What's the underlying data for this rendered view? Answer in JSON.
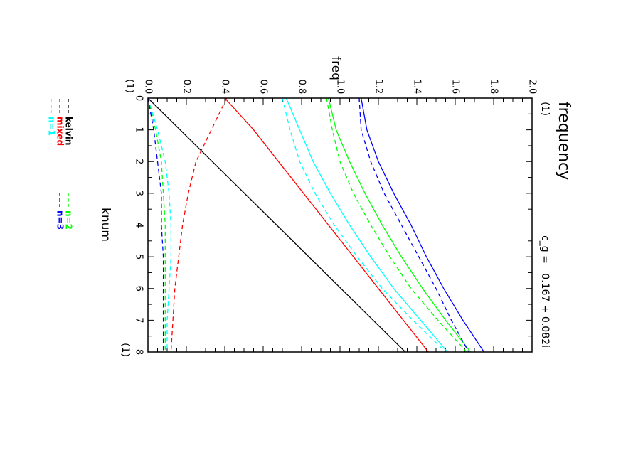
{
  "chart_data": {
    "type": "line",
    "orientation": "rotated-90-clockwise",
    "title": "frequency",
    "title_unit": "(1)",
    "subtitle": "c_g =   0.167 + 0.082i",
    "xlabel": "knum",
    "x_unit": "(1)",
    "ylabel": "freq",
    "y_unit": "(1)",
    "xlim": [
      0,
      8
    ],
    "ylim": [
      0,
      2
    ],
    "x_ticks": [
      "0",
      "1",
      "2",
      "3",
      "4",
      "5",
      "6",
      "7",
      "8"
    ],
    "y_ticks": [
      "0.0",
      "0.2",
      "0.4",
      "0.6",
      "0.8",
      "1.0",
      "1.2",
      "1.4",
      "1.6",
      "1.8",
      "2.0"
    ],
    "grid": false,
    "legend": [
      {
        "label": "kelvin",
        "color": "#000000"
      },
      {
        "label": "mixed",
        "color": "#ff0000"
      },
      {
        "label": "n=1",
        "color": "#00ffff"
      },
      {
        "label": "n=2",
        "color": "#00ff00"
      },
      {
        "label": "n=3",
        "color": "#0000ff"
      }
    ],
    "series": [
      {
        "name": "kelvin",
        "color": "#000000",
        "dash": "solid",
        "x": [
          0,
          8
        ],
        "y": [
          0,
          1.34
        ]
      },
      {
        "name": "mixed",
        "color": "#ff0000",
        "dash": "solid",
        "x": [
          0,
          1,
          2,
          3,
          4,
          5,
          6,
          7,
          8
        ],
        "y": [
          0.4,
          0.55,
          0.68,
          0.81,
          0.94,
          1.07,
          1.2,
          1.33,
          1.46
        ]
      },
      {
        "name": "mixed",
        "color": "#ff0000",
        "dash": "dashed",
        "x": [
          0,
          1,
          2,
          2.5,
          3,
          4,
          5,
          6,
          7,
          8
        ],
        "y": [
          0.41,
          0.33,
          0.25,
          0.23,
          0.21,
          0.18,
          0.16,
          0.14,
          0.13,
          0.12
        ]
      },
      {
        "name": "n=1",
        "color": "#00ffff",
        "dash": "solid",
        "x": [
          0,
          1,
          2,
          3,
          4,
          5,
          6,
          7,
          8
        ],
        "y": [
          0.72,
          0.79,
          0.86,
          0.95,
          1.05,
          1.16,
          1.28,
          1.42,
          1.56
        ]
      },
      {
        "name": "n=1",
        "color": "#00ffff",
        "dash": "dashed",
        "x": [
          0,
          1,
          2,
          3,
          4,
          5,
          6,
          7,
          8
        ],
        "y": [
          0.7,
          0.74,
          0.79,
          0.87,
          0.97,
          1.09,
          1.22,
          1.38,
          1.55
        ]
      },
      {
        "name": "n=1",
        "color": "#00ffff",
        "dash": "dashed",
        "x": [
          0,
          1,
          2,
          3,
          4,
          5,
          6,
          7,
          8
        ],
        "y": [
          0.0,
          0.05,
          0.09,
          0.11,
          0.12,
          0.12,
          0.11,
          0.1,
          0.1
        ]
      },
      {
        "name": "n=2",
        "color": "#00ff00",
        "dash": "solid",
        "x": [
          0,
          1,
          2,
          3,
          4,
          5,
          6,
          7,
          8
        ],
        "y": [
          0.94,
          0.98,
          1.05,
          1.13,
          1.22,
          1.32,
          1.43,
          1.55,
          1.68
        ]
      },
      {
        "name": "n=2",
        "color": "#00ff00",
        "dash": "dashed",
        "x": [
          0,
          1,
          2,
          3,
          4,
          5,
          6,
          7,
          8
        ],
        "y": [
          0.93,
          0.96,
          1.0,
          1.07,
          1.16,
          1.26,
          1.37,
          1.51,
          1.66
        ]
      },
      {
        "name": "n=2",
        "color": "#00ff00",
        "dash": "dashed",
        "x": [
          0,
          1,
          2,
          3,
          4,
          5,
          6,
          7,
          8
        ],
        "y": [
          0.0,
          0.04,
          0.07,
          0.08,
          0.09,
          0.09,
          0.09,
          0.09,
          0.09
        ]
      },
      {
        "name": "n=3",
        "color": "#0000ff",
        "dash": "solid",
        "x": [
          0,
          1,
          2,
          3,
          4,
          5,
          6,
          7,
          8
        ],
        "y": [
          1.11,
          1.14,
          1.2,
          1.28,
          1.37,
          1.45,
          1.54,
          1.64,
          1.75
        ]
      },
      {
        "name": "n=3",
        "color": "#0000ff",
        "dash": "dashed",
        "x": [
          0,
          1,
          2,
          3,
          4,
          5,
          6,
          7,
          8
        ],
        "y": [
          1.1,
          1.11,
          1.16,
          1.23,
          1.32,
          1.41,
          1.5,
          1.58,
          1.67
        ]
      },
      {
        "name": "n=3",
        "color": "#0000ff",
        "dash": "dashed",
        "x": [
          0,
          1,
          2,
          3,
          4,
          5,
          6,
          7,
          8
        ],
        "y": [
          0.0,
          0.03,
          0.05,
          0.07,
          0.07,
          0.08,
          0.08,
          0.08,
          0.08
        ]
      }
    ]
  }
}
